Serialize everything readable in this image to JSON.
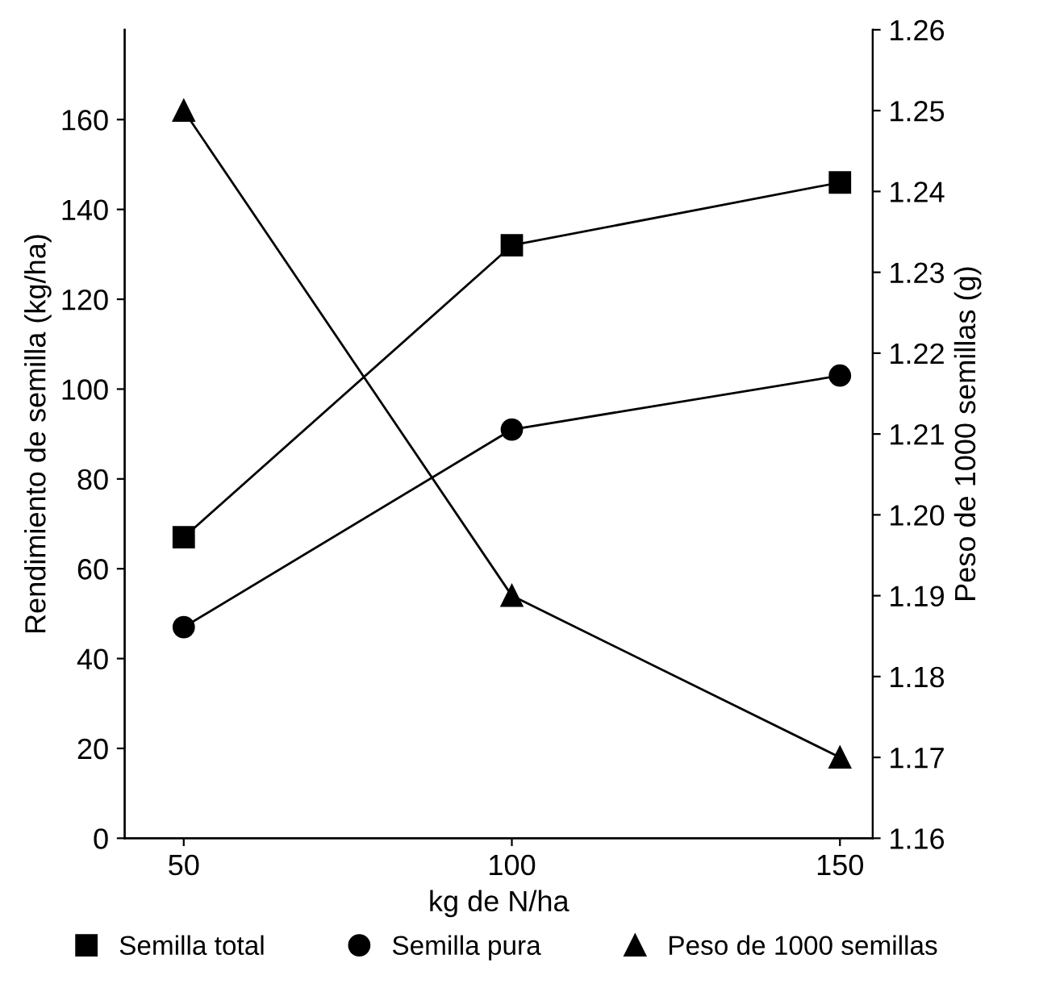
{
  "chart_data": {
    "type": "line",
    "xlabel": "kg de N/ha",
    "ylabel": "Rendimiento de semilla (kg/ha)",
    "y2label": "Peso de 1000 semillas (g)",
    "x": [
      50,
      100,
      150
    ],
    "series": [
      {
        "name": "Semilla total",
        "color": "#000000",
        "marker": "square",
        "values": [
          67,
          132,
          146
        ]
      },
      {
        "name": "Semilla pura",
        "color": "#000000",
        "marker": "circle",
        "values": [
          47,
          91,
          103
        ]
      },
      {
        "name": "Peso de 1000 semillas",
        "color": "#000000",
        "marker": "triangle",
        "axis": "y2",
        "values": [
          1.25,
          1.19,
          1.17
        ]
      }
    ],
    "xlim": [
      41,
      155
    ],
    "xticks": [
      50,
      100,
      150
    ],
    "ylim": [
      0,
      180
    ],
    "yticks": [
      0,
      20,
      40,
      60,
      80,
      100,
      120,
      140,
      160
    ],
    "y2lim": [
      1.16,
      1.26
    ],
    "y2ticks": [
      {
        "value": 1.16,
        "label": "1.16"
      },
      {
        "value": 1.17,
        "label": "1.17"
      },
      {
        "value": 1.18,
        "label": "1.18"
      },
      {
        "value": 1.19,
        "label": "1.19"
      },
      {
        "value": 1.2,
        "label": "1.20"
      },
      {
        "value": 1.21,
        "label": "1.21"
      },
      {
        "value": 1.22,
        "label": "1.22"
      },
      {
        "value": 1.23,
        "label": "1.23"
      },
      {
        "value": 1.24,
        "label": "1.24"
      },
      {
        "value": 1.25,
        "label": "1.25"
      },
      {
        "value": 1.26,
        "label": "1.26"
      }
    ],
    "grid": false,
    "legend": "bottom",
    "line_style": "solid"
  }
}
